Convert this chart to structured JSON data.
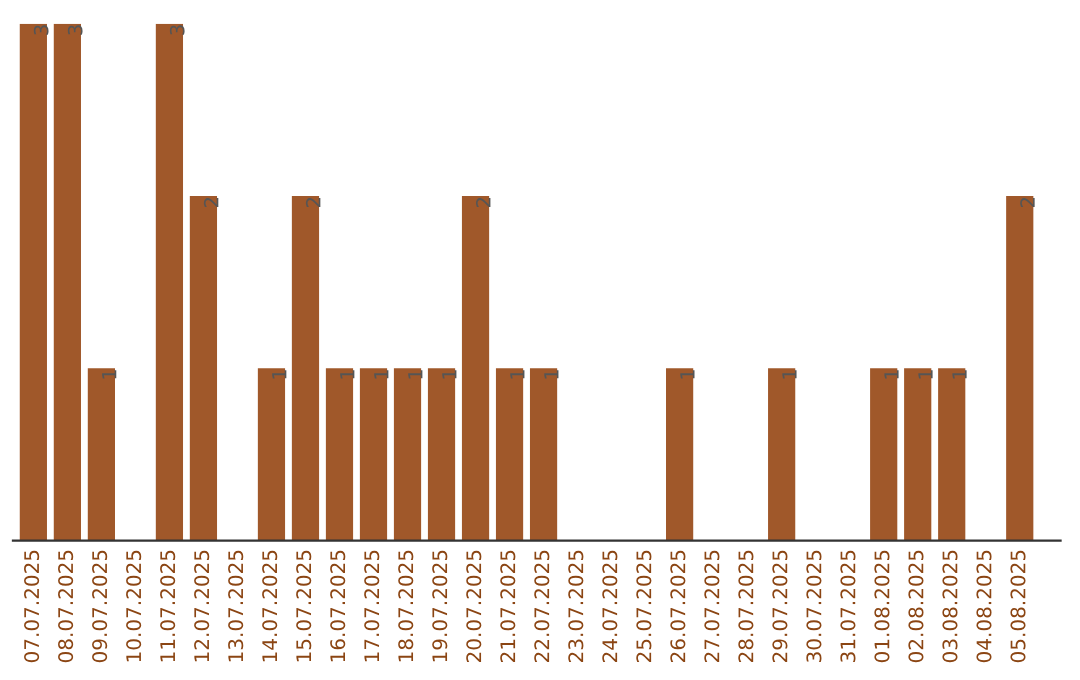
{
  "chart_data": {
    "type": "bar",
    "categories": [
      "07.07.2025",
      "08.07.2025",
      "09.07.2025",
      "10.07.2025",
      "11.07.2025",
      "12.07.2025",
      "13.07.2025",
      "14.07.2025",
      "15.07.2025",
      "16.07.2025",
      "17.07.2025",
      "18.07.2025",
      "19.07.2025",
      "20.07.2025",
      "21.07.2025",
      "22.07.2025",
      "23.07.2025",
      "24.07.2025",
      "25.07.2025",
      "26.07.2025",
      "27.07.2025",
      "28.07.2025",
      "29.07.2025",
      "30.07.2025",
      "31.07.2025",
      "01.08.2025",
      "02.08.2025",
      "03.08.2025",
      "04.08.2025",
      "05.08.2025"
    ],
    "values": [
      3,
      3,
      1,
      0,
      3,
      2,
      0,
      1,
      2,
      1,
      1,
      1,
      1,
      2,
      1,
      1,
      0,
      0,
      0,
      1,
      0,
      0,
      1,
      0,
      0,
      1,
      1,
      1,
      0,
      2
    ],
    "value_labels": [
      "3",
      "3",
      "1",
      null,
      "3",
      "2",
      null,
      "1",
      "2",
      "1",
      "1",
      "1",
      "1",
      "2",
      "1",
      "1",
      null,
      null,
      null,
      "1",
      null,
      null,
      "1",
      null,
      null,
      "1",
      "1",
      "1",
      null,
      "2"
    ],
    "color": "#a0582a",
    "grid": false,
    "legend": false
  }
}
